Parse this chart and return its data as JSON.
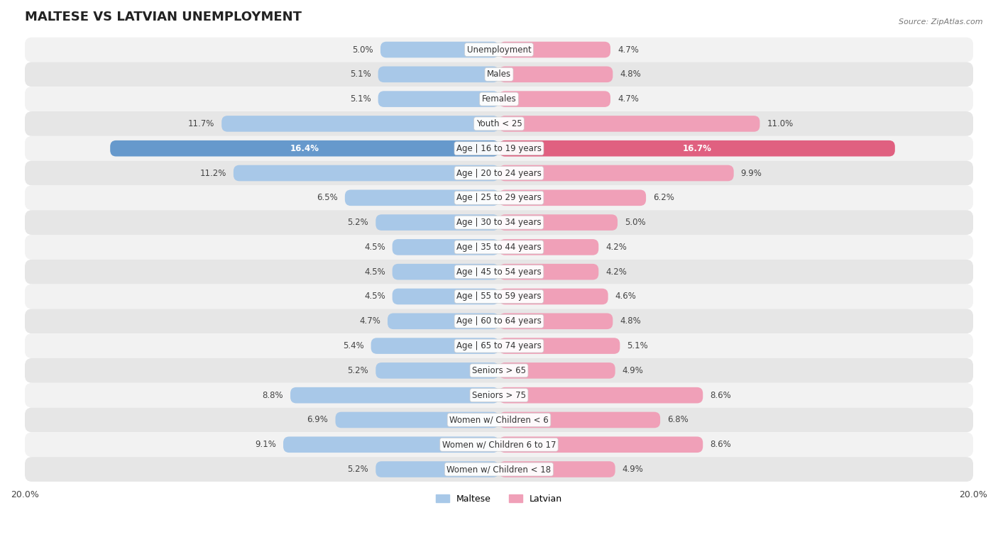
{
  "title": "MALTESE VS LATVIAN UNEMPLOYMENT",
  "source": "Source: ZipAtlas.com",
  "categories": [
    "Unemployment",
    "Males",
    "Females",
    "Youth < 25",
    "Age | 16 to 19 years",
    "Age | 20 to 24 years",
    "Age | 25 to 29 years",
    "Age | 30 to 34 years",
    "Age | 35 to 44 years",
    "Age | 45 to 54 years",
    "Age | 55 to 59 years",
    "Age | 60 to 64 years",
    "Age | 65 to 74 years",
    "Seniors > 65",
    "Seniors > 75",
    "Women w/ Children < 6",
    "Women w/ Children 6 to 17",
    "Women w/ Children < 18"
  ],
  "maltese": [
    5.0,
    5.1,
    5.1,
    11.7,
    16.4,
    11.2,
    6.5,
    5.2,
    4.5,
    4.5,
    4.5,
    4.7,
    5.4,
    5.2,
    8.8,
    6.9,
    9.1,
    5.2
  ],
  "latvian": [
    4.7,
    4.8,
    4.7,
    11.0,
    16.7,
    9.9,
    6.2,
    5.0,
    4.2,
    4.2,
    4.6,
    4.8,
    5.1,
    4.9,
    8.6,
    6.8,
    8.6,
    4.9
  ],
  "maltese_color": "#a8c8e8",
  "latvian_color": "#f0a0b8",
  "maltese_highlight": "#6699cc",
  "latvian_highlight": "#e06080",
  "row_bg_light": "#f2f2f2",
  "row_bg_dark": "#e6e6e6",
  "axis_max": 20.0,
  "bar_height": 0.65,
  "label_fontsize": 8.5,
  "value_fontsize": 8.5,
  "title_fontsize": 13
}
